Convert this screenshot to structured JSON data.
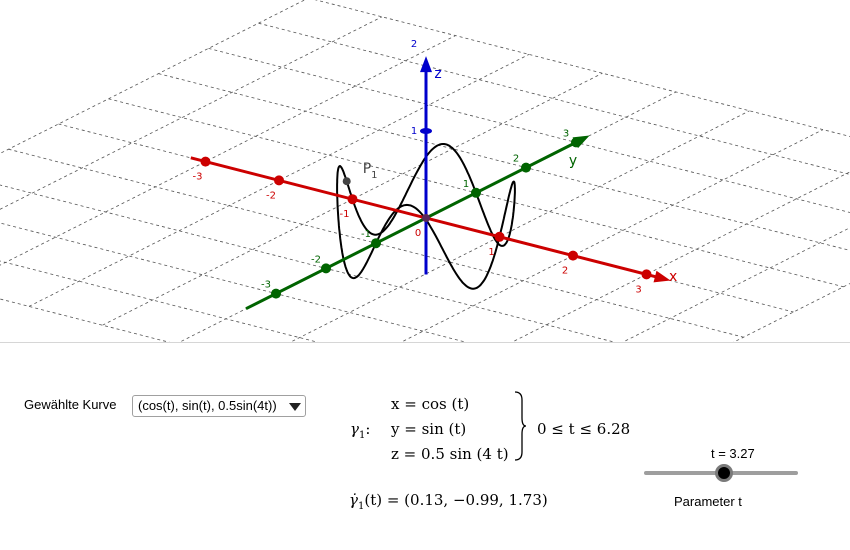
{
  "graphics": {
    "axis_x": {
      "name": "x",
      "color": "#cc0000",
      "ticks": [
        "-3",
        "-2",
        "-1",
        "0",
        "1",
        "2",
        "3"
      ]
    },
    "axis_y": {
      "name": "y",
      "color": "#006400",
      "ticks": [
        "-3",
        "-2",
        "-1",
        "1",
        "2",
        "3"
      ]
    },
    "axis_z": {
      "name": "z",
      "color": "#0000cc",
      "ticks": [
        "1",
        "2"
      ]
    },
    "point": {
      "label": "P",
      "subscript": "1"
    },
    "origin_label": "0",
    "curve_color": "#000000",
    "grid": true
  },
  "algebra": {
    "select_label": "Gewählte Kurve",
    "selected_curve": "(cos(t), sin(t), 0.5sin(4t))",
    "gamma_name": "γ",
    "gamma_sub": "1",
    "gamma_colon": ":",
    "eq_x": "x = cos (t)",
    "eq_y": "y = sin (t)",
    "eq_z": "z = 0.5  sin (4 t)",
    "range": "0 ≤ t ≤ 6.28",
    "derivative_lhs": "γ̇",
    "derivative_sub": "1",
    "derivative_rhs": "(t) = (0.13, −0.99, 1.73)"
  },
  "slider": {
    "value_label": "t = 3.27",
    "caption": "Parameter t",
    "min": 0,
    "max": 6.28,
    "value": 3.27
  }
}
